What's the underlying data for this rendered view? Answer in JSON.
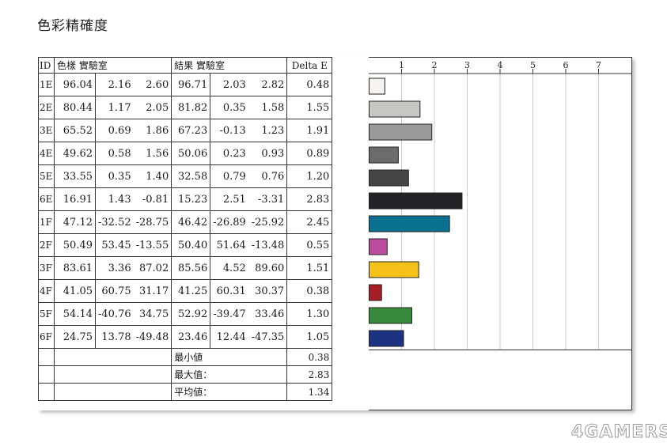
{
  "title": "色彩精確度",
  "watermark": "4GAMERS",
  "headers": {
    "id": "ID",
    "sample": "色樣 實驗室",
    "result": "結果 實驗室",
    "delta": "Delta E"
  },
  "rows": [
    {
      "id": "1E",
      "s1": "96.04",
      "s2": "2.16",
      "s3": "2.60",
      "r1": "96.71",
      "r2": "2.03",
      "r3": "2.82",
      "de": "0.48"
    },
    {
      "id": "2E",
      "s1": "80.44",
      "s2": "1.17",
      "s3": "2.05",
      "r1": "81.82",
      "r2": "0.35",
      "r3": "1.58",
      "de": "1.55"
    },
    {
      "id": "3E",
      "s1": "65.52",
      "s2": "0.69",
      "s3": "1.86",
      "r1": "67.23",
      "r2": "-0.13",
      "r3": "1.23",
      "de": "1.91"
    },
    {
      "id": "4E",
      "s1": "49.62",
      "s2": "0.58",
      "s3": "1.56",
      "r1": "50.06",
      "r2": "0.23",
      "r3": "0.93",
      "de": "0.89"
    },
    {
      "id": "5E",
      "s1": "33.55",
      "s2": "0.35",
      "s3": "1.40",
      "r1": "32.58",
      "r2": "0.79",
      "r3": "0.76",
      "de": "1.20"
    },
    {
      "id": "6E",
      "s1": "16.91",
      "s2": "1.43",
      "s3": "-0.81",
      "r1": "15.23",
      "r2": "2.51",
      "r3": "-3.31",
      "de": "2.83"
    },
    {
      "id": "1F",
      "s1": "47.12",
      "s2": "-32.52",
      "s3": "-28.75",
      "r1": "46.42",
      "r2": "-26.89",
      "r3": "-25.92",
      "de": "2.45"
    },
    {
      "id": "2F",
      "s1": "50.49",
      "s2": "53.45",
      "s3": "-13.55",
      "r1": "50.40",
      "r2": "51.64",
      "r3": "-13.48",
      "de": "0.55"
    },
    {
      "id": "3F",
      "s1": "83.61",
      "s2": "3.36",
      "s3": "87.02",
      "r1": "85.56",
      "r2": "4.52",
      "r3": "89.60",
      "de": "1.51"
    },
    {
      "id": "4F",
      "s1": "41.05",
      "s2": "60.75",
      "s3": "31.17",
      "r1": "41.25",
      "r2": "60.31",
      "r3": "30.37",
      "de": "0.38"
    },
    {
      "id": "5F",
      "s1": "54.14",
      "s2": "-40.76",
      "s3": "34.75",
      "r1": "52.92",
      "r2": "-39.47",
      "r3": "33.46",
      "de": "1.30"
    },
    {
      "id": "6F",
      "s1": "24.75",
      "s2": "13.78",
      "s3": "-49.48",
      "r1": "23.46",
      "r2": "12.44",
      "r3": "-47.35",
      "de": "1.05"
    }
  ],
  "summary": [
    {
      "label": "最小値",
      "value": "0.38"
    },
    {
      "label": "最大值：",
      "value": "2.83"
    },
    {
      "label": "平均値：",
      "value": "1.34"
    }
  ],
  "chart_data": {
    "type": "bar",
    "orientation": "horizontal",
    "categories": [
      "1E",
      "2E",
      "3E",
      "4E",
      "5E",
      "6E",
      "1F",
      "2F",
      "3F",
      "4F",
      "5F",
      "6F"
    ],
    "values": [
      0.48,
      1.55,
      1.91,
      0.89,
      1.2,
      2.83,
      2.45,
      0.55,
      1.51,
      0.38,
      1.3,
      1.05
    ],
    "colors": [
      "#f7f3ef",
      "#c6c7c2",
      "#9a9b98",
      "#6c6c6c",
      "#454545",
      "#232328",
      "#0b7190",
      "#b94c9b",
      "#f5c219",
      "#a81e26",
      "#3a8a3c",
      "#1e3282"
    ],
    "xticks": [
      "1",
      "2",
      "3",
      "4",
      "5",
      "6",
      "7"
    ],
    "xlim": [
      0,
      8
    ],
    "grid": true
  }
}
